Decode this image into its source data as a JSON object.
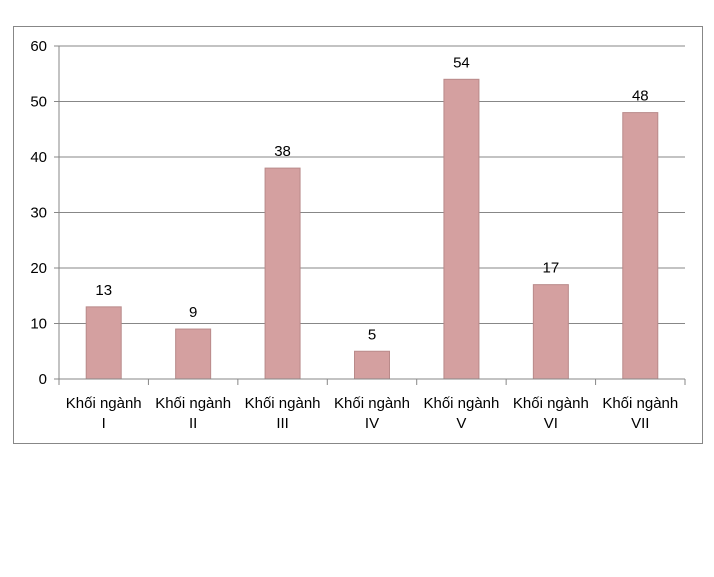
{
  "chart_data": {
    "type": "bar",
    "title": "",
    "xlabel": "",
    "ylabel": "",
    "categories": [
      [
        "Khối ngành",
        "I"
      ],
      [
        "Khối ngành",
        "II"
      ],
      [
        "Khối ngành",
        "III"
      ],
      [
        "Khối ngành",
        "IV"
      ],
      [
        "Khối ngành",
        "V"
      ],
      [
        "Khối ngành",
        "VI"
      ],
      [
        "Khối ngành",
        "VII"
      ]
    ],
    "values": [
      13,
      9,
      38,
      5,
      54,
      17,
      48
    ],
    "ylim": [
      0,
      60
    ],
    "yticks": [
      0,
      10,
      20,
      30,
      40,
      50,
      60
    ],
    "grid": true,
    "legend": "none",
    "bar_color": "#D4A0A0",
    "bar_edge_color": "#B98A8A",
    "grid_color": "#878787"
  }
}
